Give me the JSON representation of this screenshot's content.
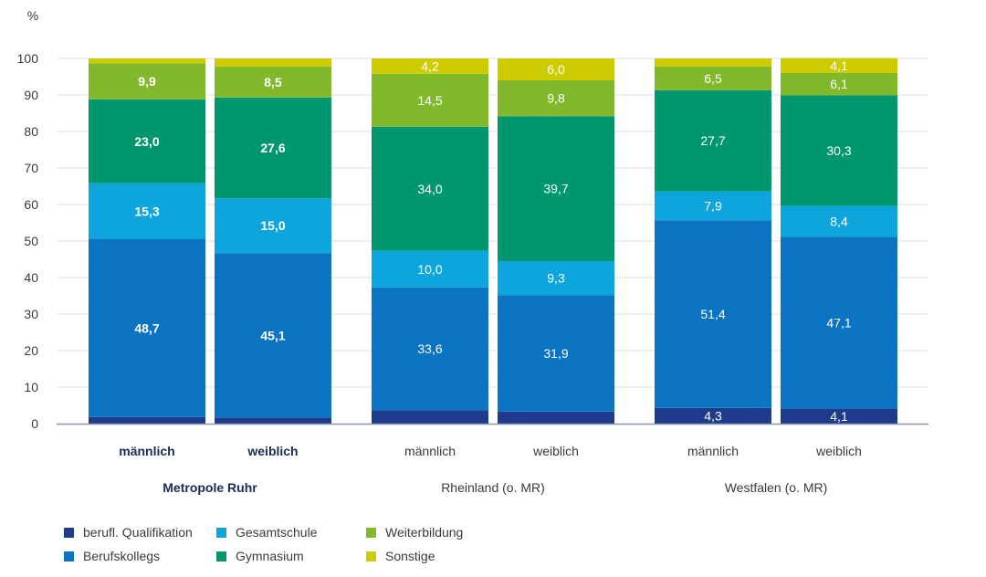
{
  "chart_data": {
    "type": "bar",
    "stacked": true,
    "ylabel": "%",
    "ylim": [
      0,
      100
    ],
    "yticks": [
      0,
      10,
      20,
      30,
      40,
      50,
      60,
      70,
      80,
      90,
      100
    ],
    "grid": true,
    "legend_position": "bottom-left",
    "categories": [
      "männlich",
      "weiblich",
      "männlich",
      "weiblich",
      "männlich",
      "weiblich"
    ],
    "groups": [
      {
        "label": "Metropole Ruhr",
        "categories": [
          0,
          1
        ],
        "bold": true
      },
      {
        "label": "Rheinland (o. MR)",
        "categories": [
          2,
          3
        ],
        "bold": false
      },
      {
        "label": "Westfalen (o. MR)",
        "categories": [
          4,
          5
        ],
        "bold": false
      }
    ],
    "series": [
      {
        "name": "berufl. Qualifikation",
        "color": "#1f3b8c",
        "values": [
          1.8,
          1.6,
          3.7,
          3.3,
          4.3,
          4.1
        ],
        "labels": [
          "",
          "",
          "",
          "",
          "4,3",
          "4,1"
        ]
      },
      {
        "name": "Berufskollegs",
        "color": "#0b74c2",
        "values": [
          48.7,
          45.1,
          33.6,
          31.9,
          51.4,
          47.1
        ],
        "labels": [
          "48,7",
          "45,1",
          "33,6",
          "31,9",
          "51,4",
          "47,1"
        ]
      },
      {
        "name": "Gesamtschule",
        "color": "#0ea5dd",
        "values": [
          15.3,
          15.0,
          10.0,
          9.3,
          7.9,
          8.4
        ],
        "labels": [
          "15,3",
          "15,0",
          "10,0",
          "9,3",
          "7,9",
          "8,4"
        ]
      },
      {
        "name": "Gymnasium",
        "color": "#00976e",
        "values": [
          23.0,
          27.6,
          34.0,
          39.7,
          27.7,
          30.3
        ],
        "labels": [
          "23,0",
          "27,6",
          "34,0",
          "39,7",
          "27,7",
          "30,3"
        ]
      },
      {
        "name": "Weiterbildung",
        "color": "#82b92c",
        "values": [
          9.9,
          8.5,
          14.5,
          9.8,
          6.5,
          6.1
        ],
        "labels": [
          "9,9",
          "8,5",
          "14,5",
          "9,8",
          "6,5",
          "6,1"
        ]
      },
      {
        "name": "Sonstige",
        "color": "#cdcc00",
        "values": [
          1.3,
          2.2,
          4.2,
          6.0,
          2.2,
          4.1
        ],
        "labels": [
          "",
          "",
          "4,2",
          "6,0",
          "",
          "4,1"
        ]
      }
    ],
    "bold_label_categories": [
      0,
      1
    ]
  }
}
